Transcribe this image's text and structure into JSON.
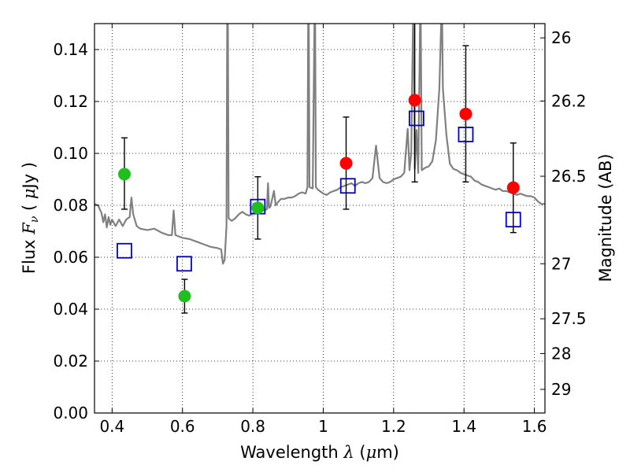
{
  "chart_data": {
    "type": "scatter",
    "xlabel_parts": [
      "Wavelength  ",
      "λ",
      " (",
      "μ",
      "m)"
    ],
    "ylabel_parts": [
      "Flux  ",
      "F",
      "ν",
      "  ( ",
      "μ",
      "Jy )"
    ],
    "y2label": "Magnitude (AB)",
    "xlim": [
      0.35,
      1.63
    ],
    "ylim": [
      0.0,
      0.15
    ],
    "grid": true,
    "x_ticks": [
      0.4,
      0.6,
      0.8,
      1.0,
      1.2,
      1.4,
      1.6
    ],
    "x_tick_labels": [
      "0.4",
      "0.6",
      "0.8",
      "1",
      "1.2",
      "1.4",
      "1.6"
    ],
    "y_ticks": [
      0.0,
      0.02,
      0.04,
      0.06,
      0.08,
      0.1,
      0.12,
      0.14
    ],
    "y_tick_labels": [
      "0.00",
      "0.02",
      "0.04",
      "0.06",
      "0.08",
      "0.10",
      "0.12",
      "0.14"
    ],
    "y2_ticks": [
      {
        "label": "26",
        "flux": 0.1445
      },
      {
        "label": "26.2",
        "flux": 0.1202
      },
      {
        "label": "26.5",
        "flux": 0.0912
      },
      {
        "label": "27",
        "flux": 0.0575
      },
      {
        "label": "27.5",
        "flux": 0.0363
      },
      {
        "label": "28",
        "flux": 0.0229
      },
      {
        "label": "29",
        "flux": 0.0091
      }
    ],
    "colors": {
      "spectrum": "#808080",
      "optical_points": "#1fbf1f",
      "nir_points": "#ff0000",
      "model_boxes": "#0000cc",
      "error_bars": "#000000"
    },
    "series": [
      {
        "points": [
          {
            "x": 0.435,
            "y": 0.092,
            "yerr_low": 0.0785,
            "yerr_high": 0.106
          },
          {
            "x": 0.606,
            "y": 0.045,
            "yerr_low": 0.0385,
            "yerr_high": 0.0515
          },
          {
            "x": 0.814,
            "y": 0.079,
            "yerr_low": 0.067,
            "yerr_high": 0.091
          }
        ]
      },
      {
        "points": [
          {
            "x": 1.065,
            "y": 0.0962,
            "yerr_low": 0.0785,
            "yerr_high": 0.114
          },
          {
            "x": 1.26,
            "y": 0.1205,
            "yerr_low": 0.089,
            "yerr_high": 0.152
          },
          {
            "x": 1.405,
            "y": 0.1152,
            "yerr_low": 0.089,
            "yerr_high": 0.1415
          },
          {
            "x": 1.54,
            "y": 0.0868,
            "yerr_low": 0.0695,
            "yerr_high": 0.104
          }
        ]
      },
      {
        "points": [
          {
            "x": 0.435,
            "y": 0.0625
          },
          {
            "x": 0.605,
            "y": 0.0575
          },
          {
            "x": 0.814,
            "y": 0.0795
          },
          {
            "x": 1.07,
            "y": 0.0875
          },
          {
            "x": 1.265,
            "y": 0.1135
          },
          {
            "x": 1.405,
            "y": 0.1073
          },
          {
            "x": 1.54,
            "y": 0.0745
          }
        ]
      },
      {
        "type": "line",
        "points": [
          [
            0.35,
            0.0805
          ],
          [
            0.36,
            0.08
          ],
          [
            0.37,
            0.077
          ],
          [
            0.375,
            0.0735
          ],
          [
            0.38,
            0.0765
          ],
          [
            0.385,
            0.0715
          ],
          [
            0.39,
            0.0755
          ],
          [
            0.395,
            0.0725
          ],
          [
            0.4,
            0.0745
          ],
          [
            0.41,
            0.072
          ],
          [
            0.42,
            0.0745
          ],
          [
            0.43,
            0.072
          ],
          [
            0.44,
            0.0745
          ],
          [
            0.45,
            0.0755
          ],
          [
            0.455,
            0.083
          ],
          [
            0.46,
            0.0765
          ],
          [
            0.47,
            0.072
          ],
          [
            0.48,
            0.071
          ],
          [
            0.5,
            0.0705
          ],
          [
            0.52,
            0.071
          ],
          [
            0.54,
            0.0695
          ],
          [
            0.55,
            0.069
          ],
          [
            0.56,
            0.0685
          ],
          [
            0.57,
            0.0685
          ],
          [
            0.575,
            0.078
          ],
          [
            0.58,
            0.0685
          ],
          [
            0.59,
            0.068
          ],
          [
            0.6,
            0.0675
          ],
          [
            0.62,
            0.067
          ],
          [
            0.64,
            0.066
          ],
          [
            0.66,
            0.065
          ],
          [
            0.68,
            0.064
          ],
          [
            0.7,
            0.0635
          ],
          [
            0.71,
            0.063
          ],
          [
            0.715,
            0.0575
          ],
          [
            0.72,
            0.059
          ],
          [
            0.725,
            0.072
          ],
          [
            0.727,
            0.15
          ],
          [
            0.729,
            0.15
          ],
          [
            0.731,
            0.075
          ],
          [
            0.74,
            0.074
          ],
          [
            0.75,
            0.075
          ],
          [
            0.76,
            0.0765
          ],
          [
            0.77,
            0.0775
          ],
          [
            0.78,
            0.0765
          ],
          [
            0.79,
            0.076
          ],
          [
            0.8,
            0.077
          ],
          [
            0.81,
            0.077
          ],
          [
            0.82,
            0.0775
          ],
          [
            0.83,
            0.078
          ],
          [
            0.84,
            0.0785
          ],
          [
            0.843,
            0.0885
          ],
          [
            0.846,
            0.079
          ],
          [
            0.85,
            0.0795
          ],
          [
            0.86,
            0.0855
          ],
          [
            0.865,
            0.08
          ],
          [
            0.87,
            0.081
          ],
          [
            0.88,
            0.0825
          ],
          [
            0.89,
            0.0825
          ],
          [
            0.9,
            0.083
          ],
          [
            0.91,
            0.083
          ],
          [
            0.92,
            0.0835
          ],
          [
            0.93,
            0.0845
          ],
          [
            0.94,
            0.085
          ],
          [
            0.95,
            0.0845
          ],
          [
            0.955,
            0.087
          ],
          [
            0.957,
            0.15
          ],
          [
            0.959,
            0.15
          ],
          [
            0.961,
            0.087
          ],
          [
            0.97,
            0.0865
          ],
          [
            0.975,
            0.15
          ],
          [
            0.977,
            0.15
          ],
          [
            0.979,
            0.087
          ],
          [
            0.985,
            0.086
          ],
          [
            0.99,
            0.0855
          ],
          [
            1.0,
            0.0845
          ],
          [
            1.01,
            0.084
          ],
          [
            1.02,
            0.085
          ],
          [
            1.03,
            0.0855
          ],
          [
            1.04,
            0.086
          ],
          [
            1.05,
            0.087
          ],
          [
            1.06,
            0.0875
          ],
          [
            1.07,
            0.088
          ],
          [
            1.08,
            0.0885
          ],
          [
            1.09,
            0.0875
          ],
          [
            1.1,
            0.0885
          ],
          [
            1.11,
            0.089
          ],
          [
            1.12,
            0.0885
          ],
          [
            1.13,
            0.089
          ],
          [
            1.14,
            0.0905
          ],
          [
            1.15,
            0.103
          ],
          [
            1.16,
            0.0905
          ],
          [
            1.17,
            0.089
          ],
          [
            1.18,
            0.0885
          ],
          [
            1.19,
            0.089
          ],
          [
            1.2,
            0.09
          ],
          [
            1.21,
            0.0905
          ],
          [
            1.22,
            0.091
          ],
          [
            1.23,
            0.0925
          ],
          [
            1.24,
            0.1095
          ],
          [
            1.245,
            0.0935
          ],
          [
            1.25,
            0.1
          ],
          [
            1.255,
            0.15
          ],
          [
            1.257,
            0.15
          ],
          [
            1.26,
            0.094
          ],
          [
            1.265,
            0.109
          ],
          [
            1.27,
            0.0925
          ],
          [
            1.275,
            0.15
          ],
          [
            1.277,
            0.15
          ],
          [
            1.28,
            0.0935
          ],
          [
            1.29,
            0.0945
          ],
          [
            1.3,
            0.095
          ],
          [
            1.31,
            0.097
          ],
          [
            1.32,
            0.105
          ],
          [
            1.33,
            0.125
          ],
          [
            1.335,
            0.15
          ],
          [
            1.338,
            0.15
          ],
          [
            1.34,
            0.125
          ],
          [
            1.35,
            0.107
          ],
          [
            1.36,
            0.096
          ],
          [
            1.37,
            0.094
          ],
          [
            1.38,
            0.0935
          ],
          [
            1.39,
            0.0925
          ],
          [
            1.4,
            0.092
          ],
          [
            1.41,
            0.0915
          ],
          [
            1.42,
            0.091
          ],
          [
            1.43,
            0.0895
          ],
          [
            1.44,
            0.089
          ],
          [
            1.45,
            0.088
          ],
          [
            1.46,
            0.0875
          ],
          [
            1.47,
            0.087
          ],
          [
            1.48,
            0.0865
          ],
          [
            1.49,
            0.086
          ],
          [
            1.5,
            0.0865
          ],
          [
            1.51,
            0.0855
          ],
          [
            1.52,
            0.0855
          ],
          [
            1.53,
            0.085
          ],
          [
            1.54,
            0.0845
          ],
          [
            1.55,
            0.084
          ],
          [
            1.56,
            0.0845
          ],
          [
            1.57,
            0.084
          ],
          [
            1.58,
            0.0835
          ],
          [
            1.59,
            0.0835
          ],
          [
            1.6,
            0.083
          ],
          [
            1.61,
            0.0815
          ],
          [
            1.62,
            0.0805
          ],
          [
            1.63,
            0.0805
          ]
        ]
      }
    ]
  }
}
